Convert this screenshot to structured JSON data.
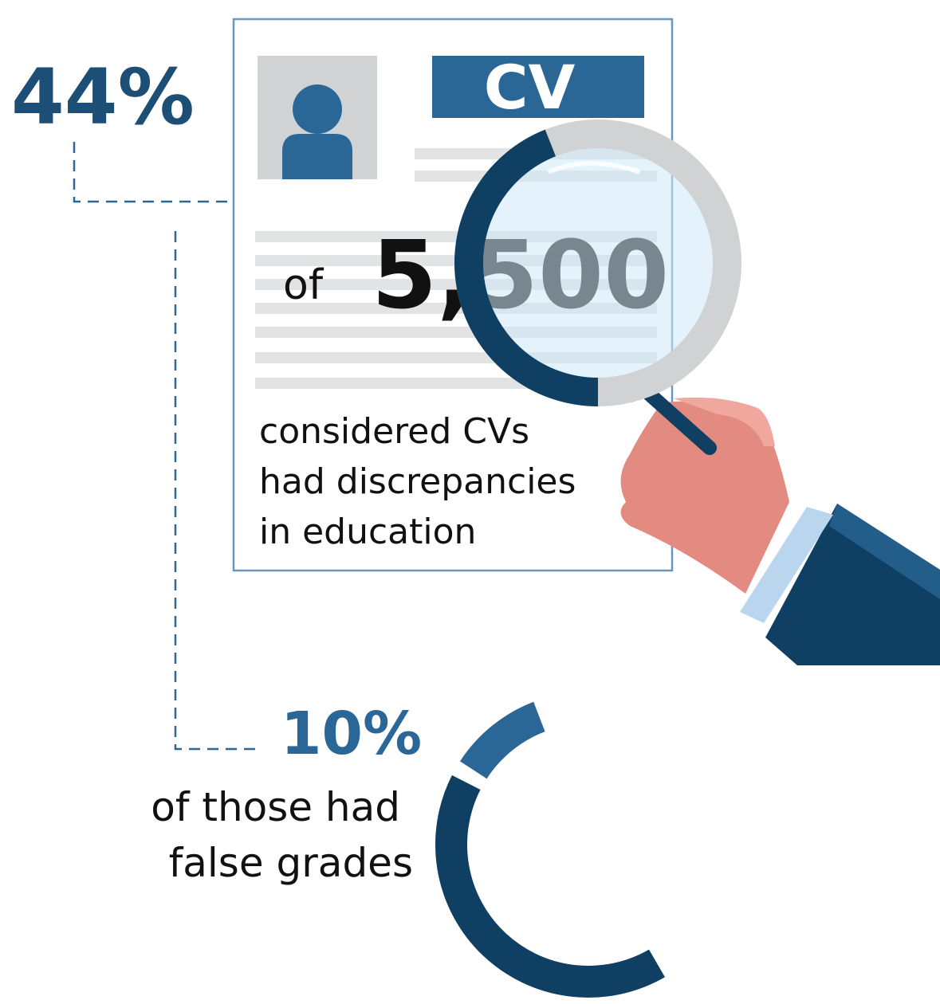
{
  "stat_main": {
    "value": 44,
    "label": "44%"
  },
  "document": {
    "badge": "CV",
    "prefix": "of",
    "total": "5,500",
    "caption": [
      "considered CVs",
      "had discrepancies",
      "in education"
    ]
  },
  "stat_sub": {
    "value": 10,
    "label": "10%"
  },
  "note": [
    "of those had",
    "false grades"
  ]
}
